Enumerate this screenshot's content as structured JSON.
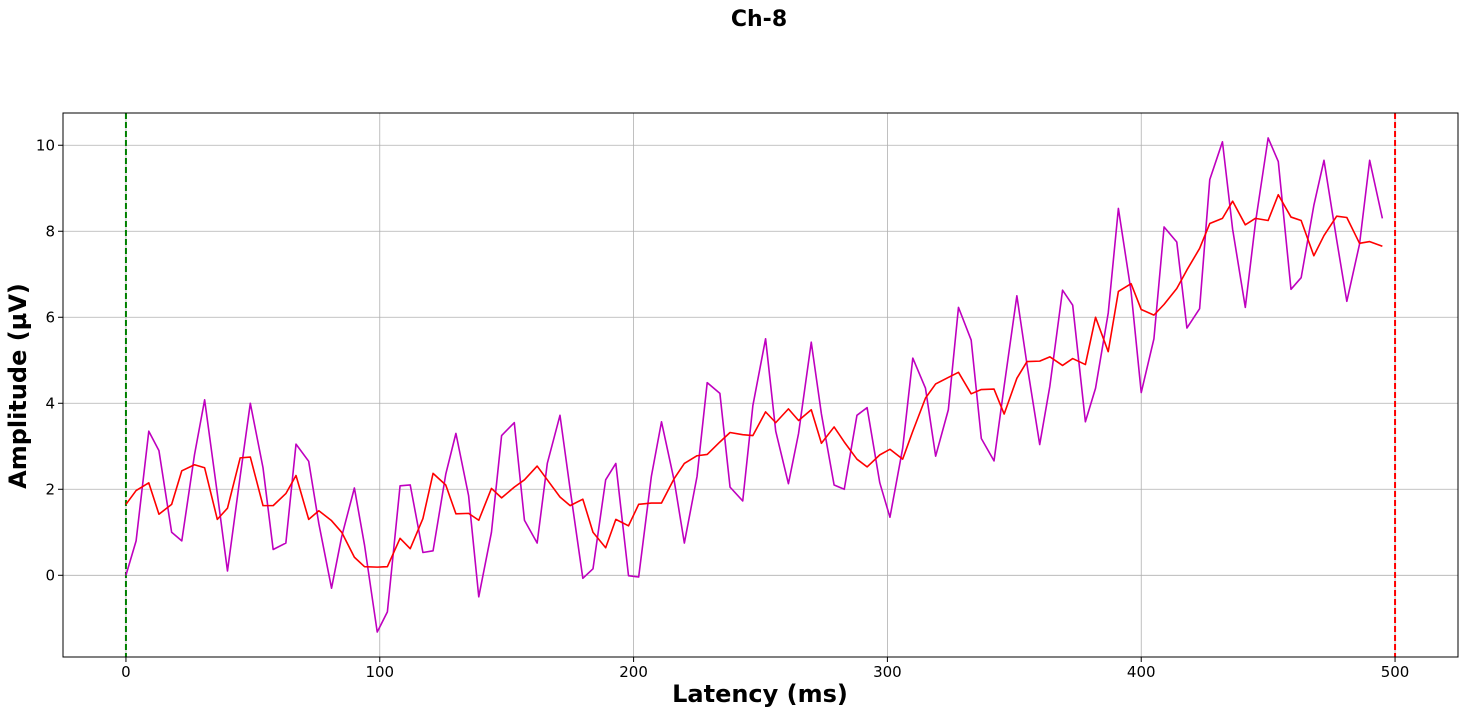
{
  "chart_data": {
    "type": "line",
    "title": "Ch-8",
    "xlabel": "Latency (ms)",
    "ylabel": "Amplitude (µV)",
    "xlim": [
      -24.8,
      524.8
    ],
    "ylim": [
      -1.9,
      10.75
    ],
    "xticks": [
      0,
      100,
      200,
      300,
      400,
      500
    ],
    "yticks": [
      0,
      2,
      4,
      6,
      8,
      10
    ],
    "grid": true,
    "legend": "none",
    "x": [
      0,
      4,
      9,
      13,
      18,
      22,
      27,
      31,
      36,
      40,
      45,
      49,
      54,
      58,
      63,
      67,
      72,
      76,
      81,
      85,
      90,
      94,
      99,
      103,
      108,
      112,
      117,
      121,
      126,
      130,
      135,
      139,
      144,
      148,
      153,
      157,
      162,
      166,
      171,
      175,
      180,
      184,
      189,
      193,
      198,
      202,
      207,
      211,
      216,
      220,
      225,
      229,
      234,
      238,
      243,
      247,
      252,
      256,
      261,
      265,
      270,
      274,
      279,
      283,
      288,
      292,
      297,
      301,
      306,
      310,
      315,
      319,
      324,
      328,
      333,
      337,
      342,
      346,
      351,
      355,
      360,
      364,
      369,
      373,
      378,
      382,
      387,
      391,
      396,
      400,
      405,
      409,
      414,
      418,
      423,
      427,
      432,
      436,
      441,
      445,
      450,
      454,
      459,
      463,
      468,
      472,
      477,
      481,
      486,
      490,
      495
    ],
    "series": [
      {
        "color": "#bf00bf",
        "values": [
          0.0,
          0.8,
          3.35,
          2.9,
          1.0,
          0.8,
          2.8,
          4.08,
          1.9,
          0.1,
          2.3,
          4.0,
          2.5,
          0.6,
          0.75,
          3.05,
          2.65,
          1.2,
          -0.3,
          0.9,
          2.03,
          0.7,
          -1.32,
          -0.85,
          2.08,
          2.1,
          0.53,
          0.57,
          2.35,
          3.3,
          1.85,
          -0.5,
          1.0,
          3.25,
          3.55,
          1.28,
          0.75,
          2.6,
          3.72,
          2.0,
          -0.07,
          0.15,
          2.22,
          2.6,
          -0.01,
          -0.04,
          2.3,
          3.57,
          2.2,
          0.75,
          2.3,
          4.48,
          4.23,
          2.05,
          1.73,
          3.95,
          5.5,
          3.35,
          2.13,
          3.3,
          5.42,
          3.75,
          2.1,
          2.0,
          3.72,
          3.9,
          2.15,
          1.35,
          2.95,
          5.05,
          4.35,
          2.77,
          3.85,
          6.23,
          5.47,
          3.18,
          2.66,
          4.4,
          6.5,
          4.9,
          3.04,
          4.4,
          6.63,
          6.28,
          3.57,
          4.35,
          6.1,
          8.53,
          6.6,
          4.25,
          5.5,
          8.1,
          7.75,
          5.75,
          6.2,
          9.2,
          10.08,
          8.05,
          6.23,
          8.2,
          10.17,
          9.62,
          6.65,
          6.92,
          8.6,
          9.65,
          7.8,
          6.37,
          7.7,
          9.65,
          8.3
        ]
      },
      {
        "color": "#ff0000",
        "values": [
          1.65,
          1.97,
          2.15,
          1.42,
          1.65,
          2.43,
          2.57,
          2.5,
          1.3,
          1.56,
          2.73,
          2.75,
          1.62,
          1.62,
          1.9,
          2.32,
          1.3,
          1.5,
          1.27,
          1.0,
          0.42,
          0.2,
          0.19,
          0.2,
          0.86,
          0.62,
          1.32,
          2.37,
          2.1,
          1.43,
          1.44,
          1.28,
          2.02,
          1.8,
          2.05,
          2.22,
          2.54,
          2.22,
          1.82,
          1.62,
          1.77,
          1.0,
          0.64,
          1.3,
          1.15,
          1.65,
          1.68,
          1.68,
          2.25,
          2.6,
          2.78,
          2.81,
          3.1,
          3.32,
          3.27,
          3.25,
          3.8,
          3.55,
          3.87,
          3.6,
          3.85,
          3.07,
          3.45,
          3.1,
          2.7,
          2.52,
          2.8,
          2.93,
          2.7,
          3.35,
          4.12,
          4.45,
          4.6,
          4.72,
          4.22,
          4.32,
          4.33,
          3.75,
          4.58,
          4.97,
          4.98,
          5.08,
          4.88,
          5.04,
          4.9,
          6.0,
          5.2,
          6.6,
          6.78,
          6.18,
          6.05,
          6.3,
          6.67,
          7.1,
          7.6,
          8.18,
          8.3,
          8.7,
          8.15,
          8.3,
          8.25,
          8.85,
          8.33,
          8.25,
          7.43,
          7.9,
          8.35,
          8.32,
          7.72,
          7.76,
          7.65
        ]
      }
    ],
    "vlines": [
      {
        "x": 0,
        "color": "#008000",
        "style": "dashed"
      },
      {
        "x": 500,
        "color": "#ff0000",
        "style": "dashed"
      }
    ]
  }
}
